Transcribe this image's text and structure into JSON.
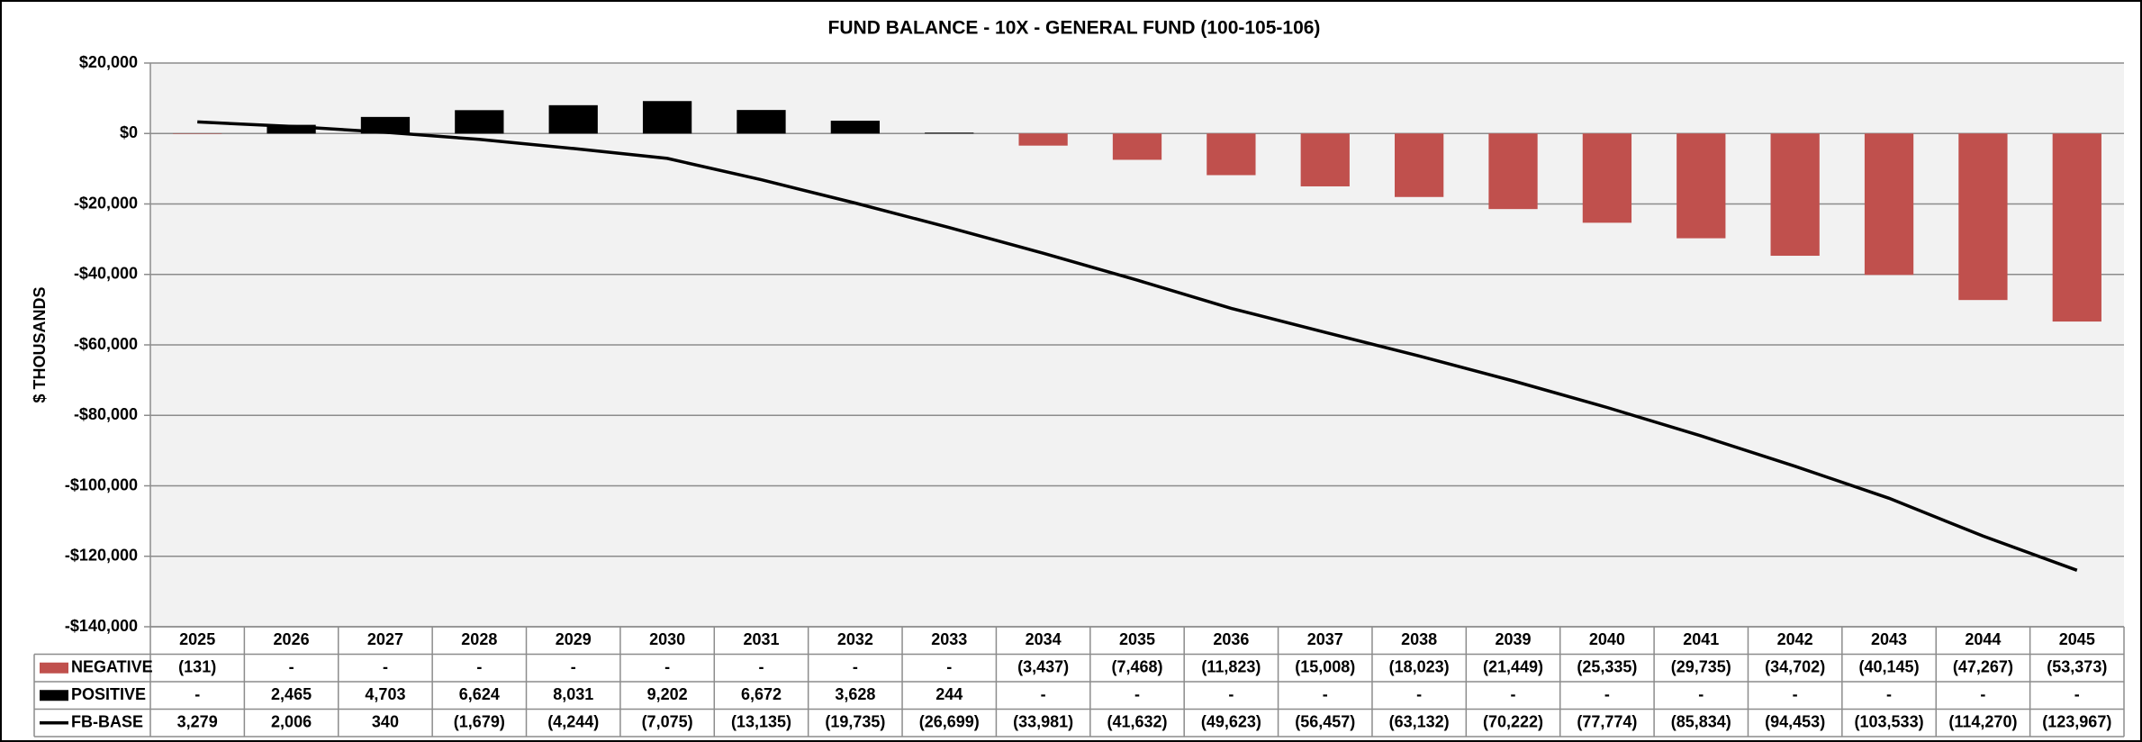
{
  "chart_data": {
    "type": "bar",
    "title": "FUND BALANCE - 10X - GENERAL FUND (100-105-106)",
    "y_label": "$ THOUSANDS",
    "categories": [
      "2025",
      "2026",
      "2027",
      "2028",
      "2029",
      "2030",
      "2031",
      "2032",
      "2033",
      "2034",
      "2035",
      "2036",
      "2037",
      "2038",
      "2039",
      "2040",
      "2041",
      "2042",
      "2043",
      "2044",
      "2045"
    ],
    "series": [
      {
        "name": "NEGATIVE",
        "type": "bar",
        "color": "#c0504d",
        "values": [
          -131,
          0,
          0,
          0,
          0,
          0,
          0,
          0,
          0,
          -3437,
          -7468,
          -11823,
          -15008,
          -18023,
          -21449,
          -25335,
          -29735,
          -34702,
          -40145,
          -47267,
          -53373
        ],
        "value_labels": [
          "(131)",
          "-",
          "-",
          "-",
          "-",
          "-",
          "-",
          "-",
          "-",
          "(3,437)",
          "(7,468)",
          "(11,823)",
          "(15,008)",
          "(18,023)",
          "(21,449)",
          "(25,335)",
          "(29,735)",
          "(34,702)",
          "(40,145)",
          "(47,267)",
          "(53,373)"
        ]
      },
      {
        "name": "POSITIVE",
        "type": "bar",
        "color": "#000000",
        "values": [
          0,
          2465,
          4703,
          6624,
          8031,
          9202,
          6672,
          3628,
          244,
          0,
          0,
          0,
          0,
          0,
          0,
          0,
          0,
          0,
          0,
          0,
          0
        ],
        "value_labels": [
          "-",
          "2,465",
          "4,703",
          "6,624",
          "8,031",
          "9,202",
          "6,672",
          "3,628",
          "244",
          "-",
          "-",
          "-",
          "-",
          "-",
          "-",
          "-",
          "-",
          "-",
          "-",
          "-",
          "-"
        ]
      },
      {
        "name": "FB-BASE",
        "type": "line",
        "color": "#000000",
        "values": [
          3279,
          2006,
          340,
          -1679,
          -4244,
          -7075,
          -13135,
          -19735,
          -26699,
          -33981,
          -41632,
          -49623,
          -56457,
          -63132,
          -70222,
          -77774,
          -85834,
          -94453,
          -103533,
          -114270,
          -123967
        ],
        "value_labels": [
          "3,279",
          "2,006",
          "340",
          "(1,679)",
          "(4,244)",
          "(7,075)",
          "(13,135)",
          "(19,735)",
          "(26,699)",
          "(33,981)",
          "(41,632)",
          "(49,623)",
          "(56,457)",
          "(63,132)",
          "(70,222)",
          "(77,774)",
          "(85,834)",
          "(94,453)",
          "(103,533)",
          "(114,270)",
          "(123,967)"
        ]
      }
    ],
    "ylim": [
      -140000,
      20000
    ],
    "yticks": [
      {
        "value": -140000,
        "label": "-$140,000"
      },
      {
        "value": -120000,
        "label": "-$120,000"
      },
      {
        "value": -100000,
        "label": "-$100,000"
      },
      {
        "value": -80000,
        "label": "-$80,000"
      },
      {
        "value": -60000,
        "label": "-$60,000"
      },
      {
        "value": -40000,
        "label": "-$40,000"
      },
      {
        "value": -20000,
        "label": "-$20,000"
      },
      {
        "value": 0,
        "label": "$0"
      },
      {
        "value": 20000,
        "label": "$20,000"
      }
    ],
    "grid": true
  }
}
